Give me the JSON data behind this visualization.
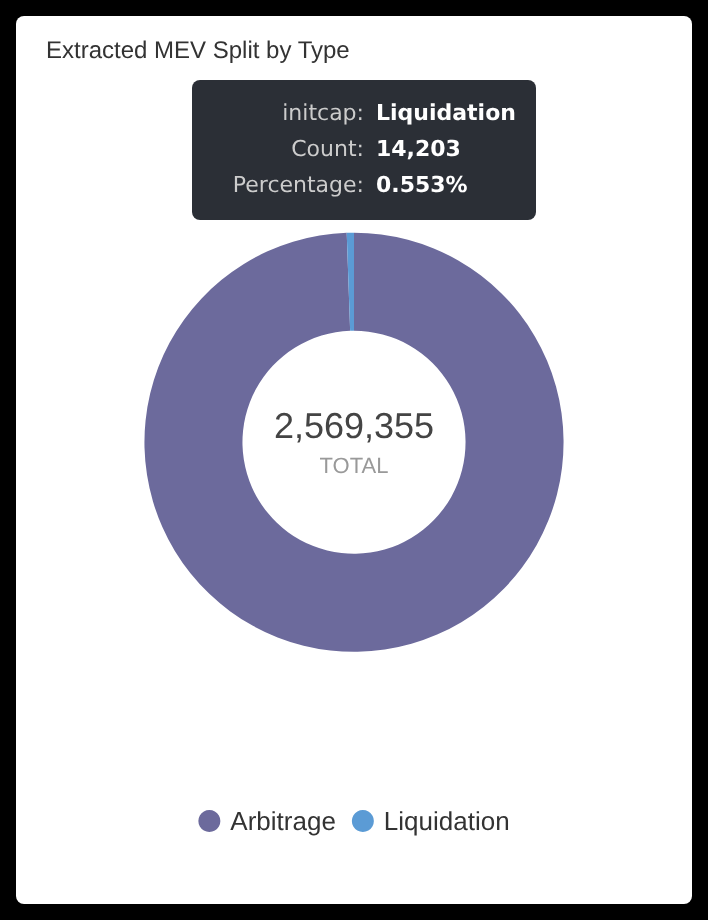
{
  "chart_data": {
    "type": "donut",
    "title": "Extracted MEV Split by Type",
    "categories": [
      "Arbitrage",
      "Liquidation"
    ],
    "values": [
      99.447,
      0.553
    ],
    "colors": [
      "#6c6a9c",
      "#5b9bd5"
    ],
    "legend": "bottom",
    "annotations": [
      "2,569,355",
      "TOTAL",
      "initcap:",
      "Liquidation",
      "Count:",
      "14,203",
      "Percentage:",
      "0.553%"
    ]
  }
}
